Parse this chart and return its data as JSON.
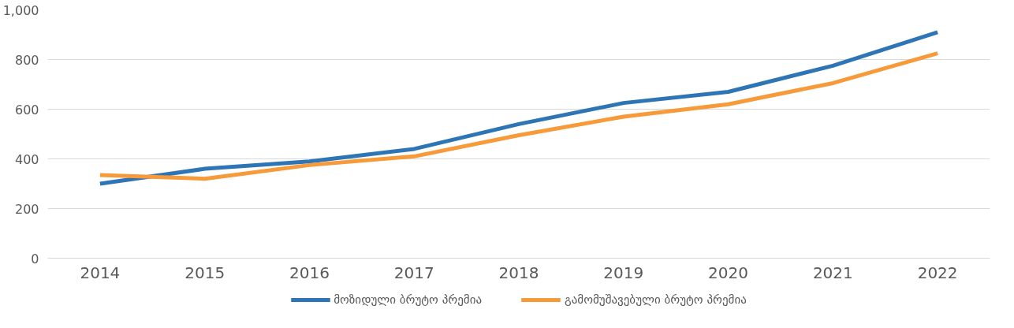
{
  "chart_data": {
    "type": "line",
    "categories": [
      "2014",
      "2015",
      "2016",
      "2017",
      "2018",
      "2019",
      "2020",
      "2021",
      "2022"
    ],
    "series": [
      {
        "name": "მოზიდული ბრუტო პრემია",
        "color": "#2e75b6",
        "values": [
          300,
          360,
          390,
          440,
          540,
          625,
          670,
          775,
          910
        ]
      },
      {
        "name": "გამომუშავებული ბრუტო პრემია",
        "color": "#f79a3a",
        "values": [
          335,
          320,
          375,
          410,
          495,
          570,
          620,
          705,
          825
        ]
      }
    ],
    "ylim": [
      0,
      1000
    ],
    "yticks": [
      0,
      200,
      400,
      600,
      800,
      {
        "value": 1000,
        "label": "1,000"
      }
    ],
    "grid": "y",
    "legend": "bottom",
    "marker": "none",
    "line_style": "solid"
  }
}
